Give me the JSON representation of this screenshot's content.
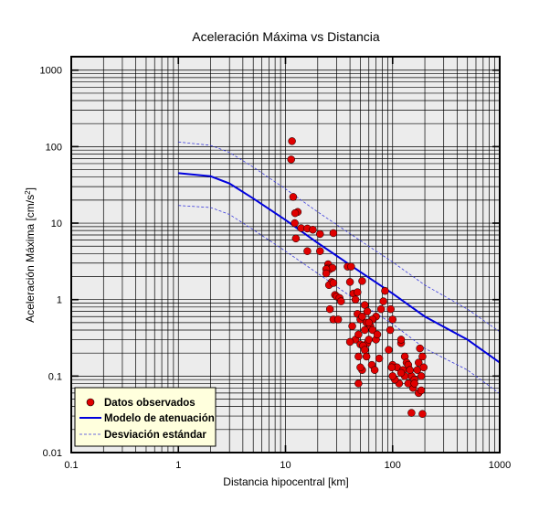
{
  "chart_data": {
    "type": "scatter",
    "title": "Aceleración Máxima vs Distancia",
    "xlabel": "Distancia hipocentral [km]",
    "ylabel": "Aceleración Máxima [cm/s",
    "ylabel_sup": "2",
    "ylabel_end": "]",
    "xscale": "log",
    "yscale": "log",
    "xlim": [
      0.1,
      1000
    ],
    "ylim": [
      0.01,
      1500
    ],
    "grid": true,
    "legend_position": "bottom-left",
    "xticks": [
      {
        "v": 0.1,
        "t": "0.1"
      },
      {
        "v": 1,
        "t": "1"
      },
      {
        "v": 10,
        "t": "10"
      },
      {
        "v": 100,
        "t": "100"
      },
      {
        "v": 1000,
        "t": "1000"
      }
    ],
    "yticks": [
      {
        "v": 0.01,
        "t": "0.01"
      },
      {
        "v": 0.1,
        "t": "0.1"
      },
      {
        "v": 1,
        "t": "1"
      },
      {
        "v": 10,
        "t": "10"
      },
      {
        "v": 100,
        "t": "100"
      },
      {
        "v": 1000,
        "t": "1000"
      }
    ],
    "colors": {
      "points": "#e00000",
      "model": "#0000dd",
      "stddev": "#3b3bdd",
      "plot_bg": "#ececec",
      "legend_bg": "#ffffdd"
    },
    "legend": [
      {
        "label": "Datos observados",
        "kind": "marker"
      },
      {
        "label": "Modelo de atenuación",
        "kind": "solid"
      },
      {
        "label": "Desviación estándar",
        "kind": "dashed"
      }
    ],
    "model": {
      "name": "Modelo de atenuación",
      "x": [
        1,
        2,
        3,
        5,
        10,
        20,
        50,
        100,
        200,
        500,
        1000
      ],
      "y": [
        45,
        41,
        33,
        21,
        11,
        5.5,
        2.3,
        1.2,
        0.6,
        0.3,
        0.15
      ]
    },
    "std_upper": {
      "name": "Desviación estándar",
      "x": [
        1,
        2,
        3,
        5,
        10,
        20,
        50,
        100,
        200,
        500,
        1000
      ],
      "y": [
        115,
        104,
        84,
        54,
        28,
        14,
        5.9,
        3.1,
        1.55,
        0.75,
        0.38
      ]
    },
    "std_lower": {
      "name": "Desviación estándar",
      "x": [
        1,
        2,
        3,
        5,
        10,
        20,
        50,
        100,
        200,
        500,
        1000
      ],
      "y": [
        17,
        16,
        13,
        8.2,
        4.3,
        2.2,
        0.9,
        0.48,
        0.23,
        0.12,
        0.059
      ]
    },
    "points": {
      "name": "Datos observados",
      "x": [
        11.5,
        11.3,
        11.8,
        12.2,
        13.0,
        12.5,
        14.0,
        16.0,
        18.0,
        21.0,
        12.3,
        21.0,
        16.0,
        28.0,
        25.0,
        25.0,
        26.0,
        27.5,
        24.0,
        24.0,
        27.0,
        25.5,
        28.0,
        29.0,
        30.0,
        32.0,
        33.0,
        26.0,
        28.0,
        31.0,
        38.0,
        41.0,
        40.0,
        43.0,
        45.0,
        47.0,
        50.0,
        42.0,
        45.0,
        40.0,
        48.0,
        52.0,
        47.0,
        55.0,
        58.0,
        52.0,
        57.0,
        48.0,
        58.0,
        62.0,
        60.0,
        50.0,
        53.0,
        55.0,
        65.0,
        57.0,
        70.0,
        52.0,
        64.0,
        72.0,
        75.0,
        68.0,
        85.0,
        82.0,
        78.0,
        70.0,
        65.0,
        60.0,
        55.0,
        48.0,
        50.0,
        96.0,
        100.0,
        95.0,
        92.0,
        100.0,
        110.0,
        120.0,
        125.0,
        130.0,
        135.0,
        140.0,
        145.0,
        150.0,
        160.0,
        170.0,
        175.0,
        180.0,
        190.0,
        195.0,
        185.0,
        155.0,
        140.0,
        130.0,
        120.0,
        115.0,
        105.0,
        100.0,
        98.0,
        150.0,
        190.0,
        160.0,
        175.0,
        185.0,
        145.0,
        120.0
      ],
      "y": [
        118,
        68,
        22,
        10,
        14,
        6.3,
        8.6,
        8.5,
        8.2,
        7.2,
        13.5,
        4.3,
        4.3,
        7.4,
        2.9,
        2.6,
        2.5,
        2.6,
        2.5,
        2.2,
        1.7,
        1.55,
        1.65,
        1.15,
        1.1,
        1.05,
        0.95,
        0.75,
        0.55,
        0.55,
        2.7,
        2.7,
        1.7,
        1.2,
        1.0,
        0.65,
        0.55,
        0.45,
        0.3,
        0.28,
        0.18,
        1.75,
        1.25,
        0.85,
        0.7,
        0.6,
        0.5,
        0.35,
        0.27,
        0.45,
        0.3,
        0.26,
        0.25,
        0.22,
        0.4,
        0.18,
        0.3,
        0.12,
        0.14,
        0.35,
        0.17,
        0.12,
        1.3,
        0.95,
        0.75,
        0.6,
        0.55,
        0.5,
        0.4,
        0.08,
        0.13,
        0.75,
        0.55,
        0.4,
        0.22,
        0.14,
        0.13,
        0.27,
        0.12,
        0.18,
        0.15,
        0.14,
        0.12,
        0.1,
        0.09,
        0.12,
        0.15,
        0.23,
        0.18,
        0.13,
        0.1,
        0.07,
        0.08,
        0.1,
        0.11,
        0.08,
        0.09,
        0.1,
        0.13,
        0.033,
        0.032,
        0.08,
        0.06,
        0.065,
        0.12,
        0.3
      ]
    }
  }
}
